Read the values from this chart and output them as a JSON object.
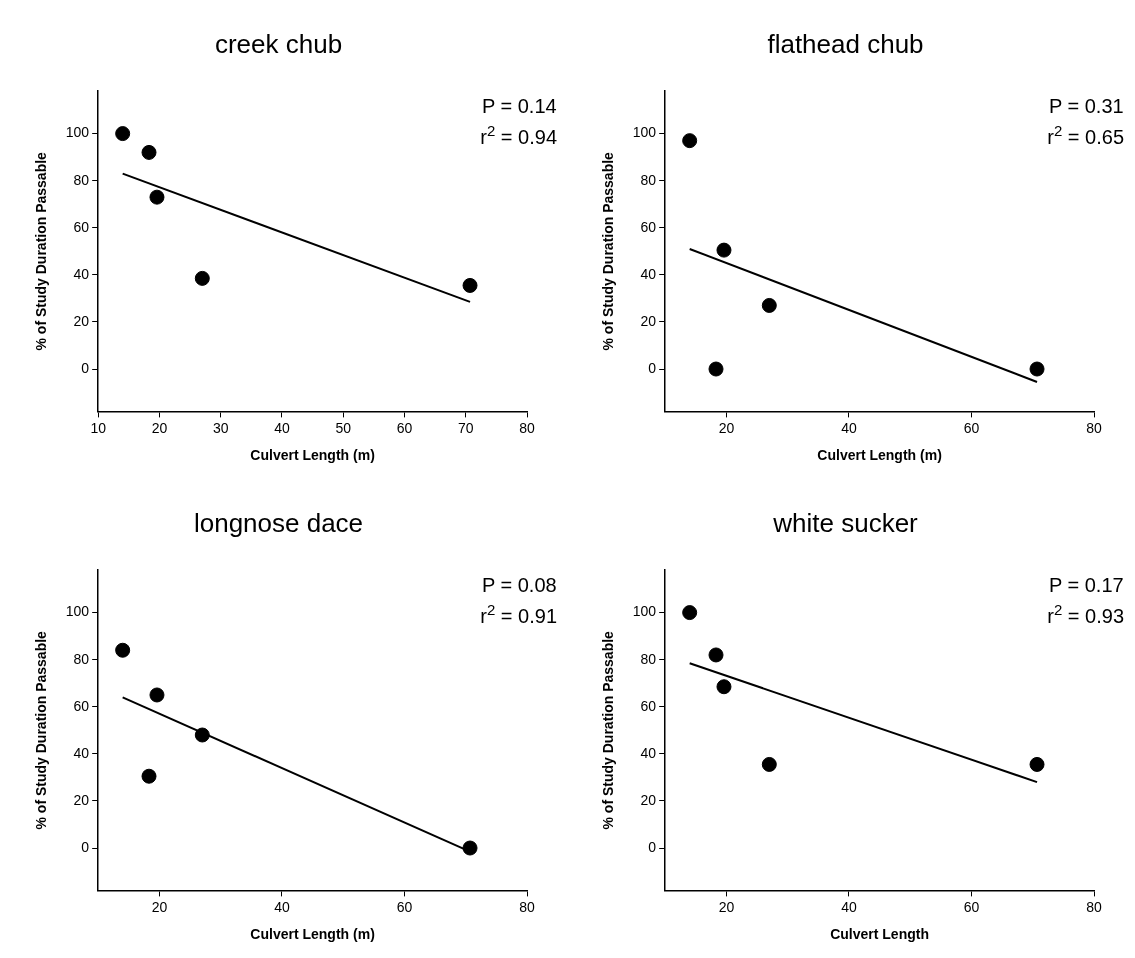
{
  "chart_data": [
    {
      "type": "scatter",
      "title": "creek chub",
      "xlabel": "Culvert Length (m)",
      "ylabel": "% of Study Duration Passable",
      "xlim": [
        10,
        80
      ],
      "xticks": [
        10,
        20,
        30,
        40,
        50,
        60,
        70,
        80
      ],
      "ylim": [
        -18,
        118
      ],
      "yticks": [
        0,
        20,
        40,
        60,
        80,
        100
      ],
      "grid": false,
      "legend": false,
      "marker": "circle",
      "series": [
        {
          "color": "#000000",
          "x": [
            14,
            18.3,
            19.6,
            27,
            70.7
          ],
          "values": [
            100,
            92,
            73,
            38.5,
            35.5
          ]
        },
        {
          "type": "line",
          "color": "#000000",
          "marker": "none",
          "line_style": "solid",
          "x": [
            14,
            70.7
          ],
          "values": [
            83,
            28.5
          ]
        }
      ],
      "annotations": [
        "P = 0.14",
        "r$^{2}$ = 0.94"
      ]
    },
    {
      "type": "scatter",
      "title": "flathead chub",
      "xlabel": "Culvert Length (m)",
      "ylabel": "% of Study Duration Passable",
      "xlim": [
        10,
        80
      ],
      "xticks": [
        20,
        40,
        60,
        80
      ],
      "ylim": [
        -18,
        118
      ],
      "yticks": [
        0,
        20,
        40,
        60,
        80,
        100
      ],
      "grid": false,
      "legend": false,
      "marker": "circle",
      "series": [
        {
          "color": "#000000",
          "x": [
            14,
            18.3,
            19.6,
            27,
            70.7
          ],
          "values": [
            97,
            0,
            50.5,
            27,
            0
          ]
        },
        {
          "type": "line",
          "color": "#000000",
          "marker": "none",
          "line_style": "solid",
          "x": [
            14,
            70.7
          ],
          "values": [
            51,
            -5.5
          ]
        }
      ],
      "annotations": [
        "P = 0.31",
        "r$^{2}$ = 0.65"
      ]
    },
    {
      "type": "scatter",
      "title": "longnose dace",
      "xlabel": "Culvert Length (m)",
      "ylabel": "% of Study Duration Passable",
      "xlim": [
        10,
        80
      ],
      "xticks": [
        20,
        40,
        60,
        80
      ],
      "ylim": [
        -18,
        118
      ],
      "yticks": [
        0,
        20,
        40,
        60,
        80,
        100
      ],
      "grid": false,
      "legend": false,
      "marker": "circle",
      "series": [
        {
          "color": "#000000",
          "x": [
            14,
            18.3,
            19.6,
            27,
            70.7
          ],
          "values": [
            84,
            30.5,
            65,
            48,
            0
          ]
        },
        {
          "type": "line",
          "color": "#000000",
          "marker": "none",
          "line_style": "solid",
          "x": [
            14,
            70.7
          ],
          "values": [
            64,
            -1.5
          ]
        }
      ],
      "annotations": [
        "P = 0.08",
        "r$^{2}$ = 0.91"
      ]
    },
    {
      "type": "scatter",
      "title": "white sucker",
      "xlabel": "Culvert Length",
      "ylabel": "% of Study Duration Passable",
      "xlim": [
        10,
        80
      ],
      "xticks": [
        20,
        40,
        60,
        80
      ],
      "ylim": [
        -18,
        118
      ],
      "yticks": [
        0,
        20,
        40,
        60,
        80,
        100
      ],
      "grid": false,
      "legend": false,
      "marker": "circle",
      "series": [
        {
          "color": "#000000",
          "x": [
            14,
            18.3,
            19.6,
            27,
            70.7
          ],
          "values": [
            100,
            82,
            68.5,
            35.5,
            35.5
          ]
        },
        {
          "type": "line",
          "color": "#000000",
          "marker": "none",
          "line_style": "solid",
          "x": [
            14,
            70.7
          ],
          "values": [
            78.5,
            28
          ]
        }
      ],
      "annotations": [
        "P = 0.17",
        "r$^{2}$ = 0.93"
      ]
    }
  ]
}
